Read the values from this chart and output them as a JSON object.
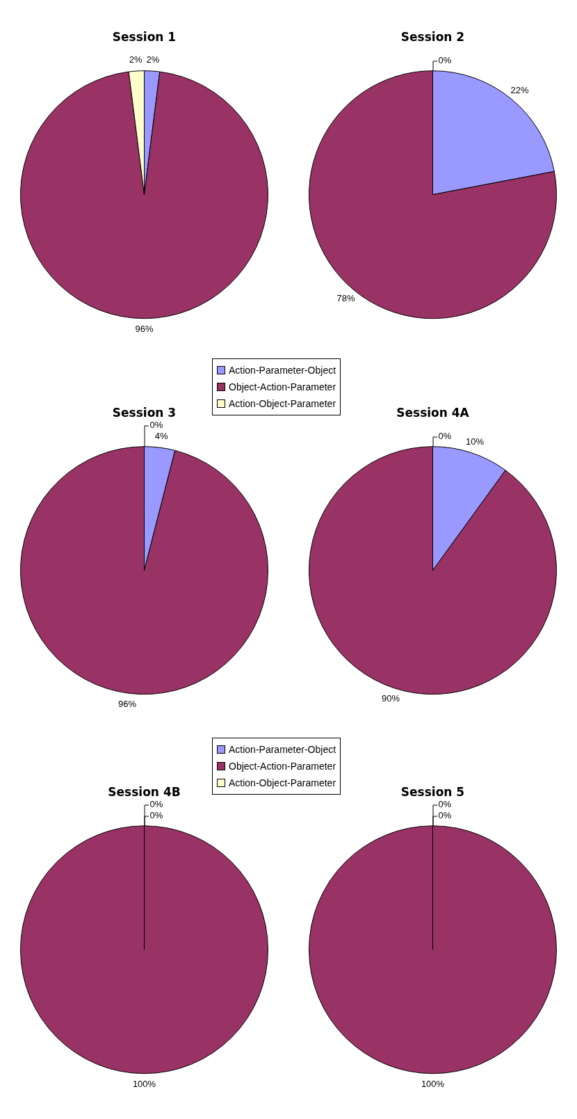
{
  "chart_data": [
    {
      "type": "pie",
      "title": "Session 1",
      "categories": [
        null,
        null,
        null
      ],
      "values": [
        2,
        96,
        2
      ],
      "colors": [
        "#9999ff",
        "#993366",
        "#ffffcc"
      ],
      "value_labels": [
        "2%",
        "96%",
        "2%"
      ],
      "legend": false
    },
    {
      "type": "pie",
      "title": "Session 2",
      "categories": [
        null,
        null,
        null
      ],
      "values": [
        22,
        78,
        0
      ],
      "colors": [
        "#9999ff",
        "#993366",
        "#ffffcc"
      ],
      "value_labels": [
        "22%",
        "78%",
        "0%"
      ],
      "legend": false
    },
    {
      "type": "pie",
      "title": "Session 3",
      "categories": [
        "Action-Parameter-Object",
        "Object-Action-Parameter",
        "Action-Object-Parameter"
      ],
      "values": [
        4,
        96,
        0
      ],
      "colors": [
        "#9999ff",
        "#993366",
        "#ffffcc"
      ],
      "value_labels": [
        "4%",
        "96%",
        "0%"
      ],
      "legend": "top right"
    },
    {
      "type": "pie",
      "title": "Session 4A",
      "categories": [
        null,
        null,
        null
      ],
      "values": [
        10,
        90,
        0
      ],
      "colors": [
        "#9999ff",
        "#993366",
        "#ffffcc"
      ],
      "value_labels": [
        "10%",
        "90%",
        "0%"
      ],
      "legend": false
    },
    {
      "type": "pie",
      "title": "Session 4B",
      "categories": [
        "Action-Parameter-Object",
        "Object-Action-Parameter",
        "Action-Object-Parameter"
      ],
      "values": [
        0,
        100,
        0
      ],
      "colors": [
        "#9999ff",
        "#993366",
        "#ffffcc"
      ],
      "value_labels": [
        "0%",
        "100%",
        "0%"
      ],
      "legend": "top right"
    },
    {
      "type": "pie",
      "title": "Session 5",
      "categories": [
        null,
        null,
        null
      ],
      "values": [
        0,
        100,
        0
      ],
      "colors": [
        "#9999ff",
        "#993366",
        "#ffffcc"
      ],
      "value_labels": [
        "0%",
        "100%",
        "0%"
      ],
      "legend": false
    }
  ]
}
